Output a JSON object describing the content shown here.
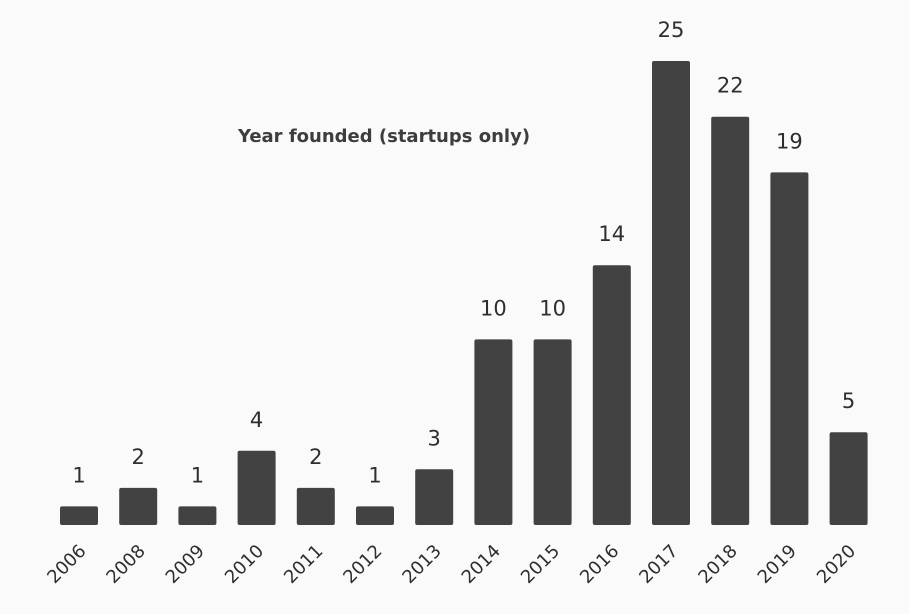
{
  "chart_data": {
    "type": "bar",
    "title": "Year founded (startups only)",
    "xlabel": "",
    "ylabel": "",
    "categories": [
      "2006",
      "2008",
      "2009",
      "2010",
      "2011",
      "2012",
      "2013",
      "2014",
      "2015",
      "2016",
      "2017",
      "2018",
      "2019",
      "2020"
    ],
    "values": [
      1,
      2,
      1,
      4,
      2,
      1,
      3,
      10,
      10,
      14,
      25,
      22,
      19,
      5
    ],
    "ylim": [
      0,
      25
    ],
    "grid": false,
    "legend": "none",
    "data_labels": true,
    "bar_color": "#424242",
    "background_color": "#fafafa"
  }
}
